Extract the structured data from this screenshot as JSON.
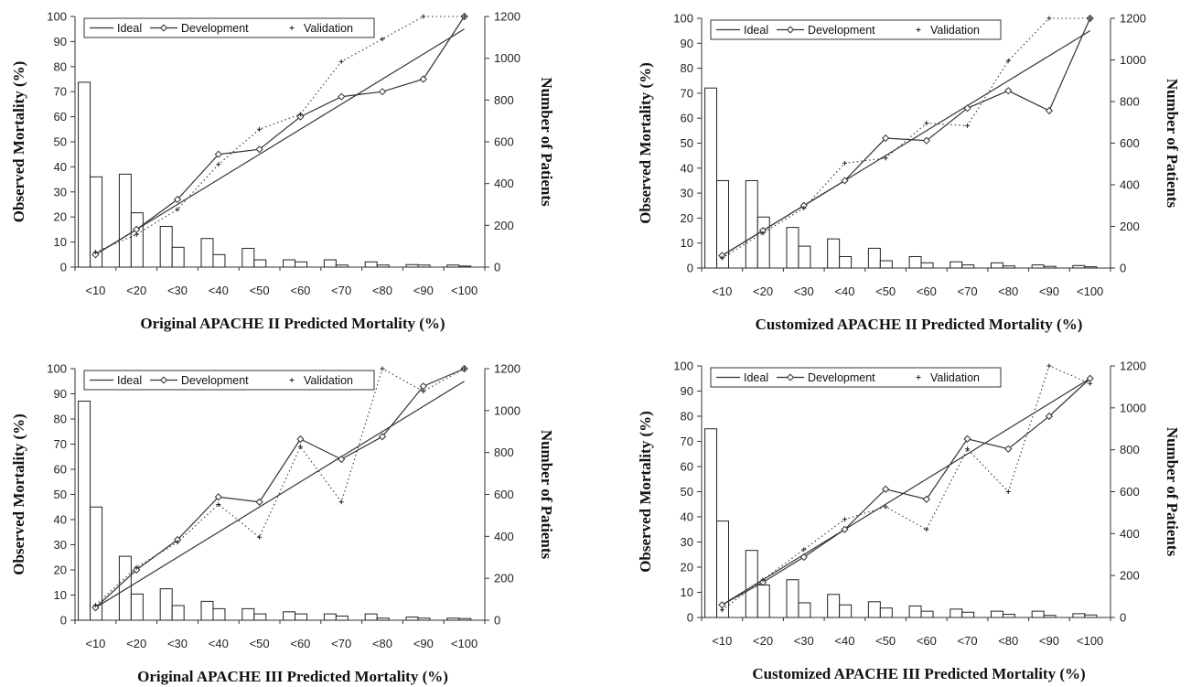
{
  "chart_data": [
    {
      "type": "bar",
      "xlabel": "Original APACHE II Predicted Mortality (%)",
      "ylabel": "Observed Mortality (%)",
      "y2label": "Number of Patients",
      "categories": [
        "<10",
        "<20",
        "<30",
        "<40",
        "<50",
        "<60",
        "<70",
        "<80",
        "<90",
        "<100"
      ],
      "ylim": [
        0,
        100
      ],
      "y2lim": [
        0,
        1200
      ],
      "yticks": [
        0,
        10,
        20,
        30,
        40,
        50,
        60,
        70,
        80,
        90,
        100
      ],
      "y2ticks": [
        0,
        200,
        400,
        600,
        800,
        1000,
        1200
      ],
      "legend": [
        "Ideal",
        "Development",
        "Validation"
      ],
      "legend_position": "top-left",
      "bars": [
        {
          "name": "Development",
          "values": [
            885,
            445,
            195,
            137,
            90,
            35,
            35,
            25,
            12,
            10
          ]
        },
        {
          "name": "Validation",
          "values": [
            432,
            260,
            95,
            60,
            35,
            25,
            10,
            10,
            10,
            5
          ]
        }
      ],
      "series": [
        {
          "name": "Ideal",
          "values": [
            5,
            15,
            25,
            35,
            45,
            55,
            65,
            75,
            85,
            95
          ]
        },
        {
          "name": "Development",
          "values": [
            5,
            15,
            27,
            45,
            47,
            60,
            68,
            70,
            75,
            100
          ]
        },
        {
          "name": "Validation",
          "values": [
            6,
            13,
            23,
            41,
            55,
            61,
            82,
            91,
            100,
            100
          ]
        }
      ]
    },
    {
      "type": "bar",
      "xlabel": "Customized APACHE II Predicted Mortality (%)",
      "ylabel": "Observed Mortality (%)",
      "y2label": "Number of Patients",
      "categories": [
        "<10",
        "<20",
        "<30",
        "<40",
        "<50",
        "<60",
        "<70",
        "<80",
        "<90",
        "<100"
      ],
      "ylim": [
        0,
        100
      ],
      "y2lim": [
        0,
        1200
      ],
      "yticks": [
        0,
        10,
        20,
        30,
        40,
        50,
        60,
        70,
        80,
        90,
        100
      ],
      "y2ticks": [
        0,
        200,
        400,
        600,
        800,
        1000,
        1200
      ],
      "legend": [
        "Ideal",
        "Development",
        "Validation"
      ],
      "legend_position": "top-left",
      "bars": [
        {
          "name": "Development",
          "values": [
            865,
            420,
            195,
            140,
            95,
            55,
            30,
            25,
            15,
            12
          ]
        },
        {
          "name": "Validation",
          "values": [
            420,
            245,
            105,
            55,
            35,
            25,
            15,
            10,
            8,
            6
          ]
        }
      ],
      "series": [
        {
          "name": "Ideal",
          "values": [
            5,
            15,
            25,
            35,
            45,
            55,
            65,
            75,
            85,
            95
          ]
        },
        {
          "name": "Development",
          "values": [
            5,
            15,
            25,
            35,
            52,
            51,
            64,
            71,
            63,
            100
          ]
        },
        {
          "name": "Validation",
          "values": [
            4,
            14,
            24,
            42,
            44,
            58,
            57,
            83,
            100,
            100
          ]
        }
      ]
    },
    {
      "type": "bar",
      "xlabel": "Original APACHE III Predicted Mortality (%)",
      "ylabel": "Observed Mortality (%)",
      "y2label": "Number of Patients",
      "categories": [
        "<10",
        "<20",
        "<30",
        "<40",
        "<50",
        "<60",
        "<70",
        "<80",
        "<90",
        "<100"
      ],
      "ylim": [
        0,
        100
      ],
      "y2lim": [
        0,
        1200
      ],
      "yticks": [
        0,
        10,
        20,
        30,
        40,
        50,
        60,
        70,
        80,
        90,
        100
      ],
      "y2ticks": [
        0,
        200,
        400,
        600,
        800,
        1000,
        1200
      ],
      "legend": [
        "Ideal",
        "Development",
        "Validation"
      ],
      "legend_position": "top-left",
      "bars": [
        {
          "name": "Development",
          "values": [
            1045,
            305,
            150,
            90,
            55,
            40,
            30,
            30,
            15,
            10
          ]
        },
        {
          "name": "Validation",
          "values": [
            540,
            125,
            70,
            55,
            30,
            30,
            20,
            10,
            10,
            8
          ]
        }
      ],
      "series": [
        {
          "name": "Ideal",
          "values": [
            5,
            15,
            25,
            35,
            45,
            55,
            65,
            75,
            85,
            95
          ]
        },
        {
          "name": "Development",
          "values": [
            5,
            20,
            32,
            49,
            47,
            72,
            64,
            73,
            93,
            100
          ]
        },
        {
          "name": "Validation",
          "values": [
            6,
            21,
            31,
            46,
            33,
            69,
            47,
            100,
            91,
            100
          ]
        }
      ]
    },
    {
      "type": "bar",
      "xlabel": "Customized APACHE III Predicted Mortality (%)",
      "ylabel": "Observed Mortality (%)",
      "y2label": "Number of Patients",
      "categories": [
        "<10",
        "<20",
        "<30",
        "<40",
        "<50",
        "<60",
        "<70",
        "<80",
        "<90",
        "<100"
      ],
      "ylim": [
        0,
        100
      ],
      "y2lim": [
        0,
        1200
      ],
      "yticks": [
        0,
        10,
        20,
        30,
        40,
        50,
        60,
        70,
        80,
        90,
        100
      ],
      "y2ticks": [
        0,
        200,
        400,
        600,
        800,
        1000,
        1200
      ],
      "legend": [
        "Ideal",
        "Development",
        "Validation"
      ],
      "legend_position": "top-left",
      "bars": [
        {
          "name": "Development",
          "values": [
            900,
            320,
            180,
            110,
            75,
            55,
            40,
            30,
            30,
            18
          ]
        },
        {
          "name": "Validation",
          "values": [
            460,
            155,
            70,
            60,
            45,
            30,
            25,
            15,
            10,
            12
          ]
        }
      ],
      "series": [
        {
          "name": "Ideal",
          "values": [
            5,
            15,
            25,
            35,
            45,
            55,
            65,
            75,
            85,
            95
          ]
        },
        {
          "name": "Development",
          "values": [
            5,
            14,
            24,
            35,
            51,
            47,
            71,
            67,
            80,
            95
          ]
        },
        {
          "name": "Validation",
          "values": [
            3,
            15,
            27,
            39,
            44,
            35,
            67,
            50,
            100,
            93
          ]
        }
      ]
    }
  ]
}
